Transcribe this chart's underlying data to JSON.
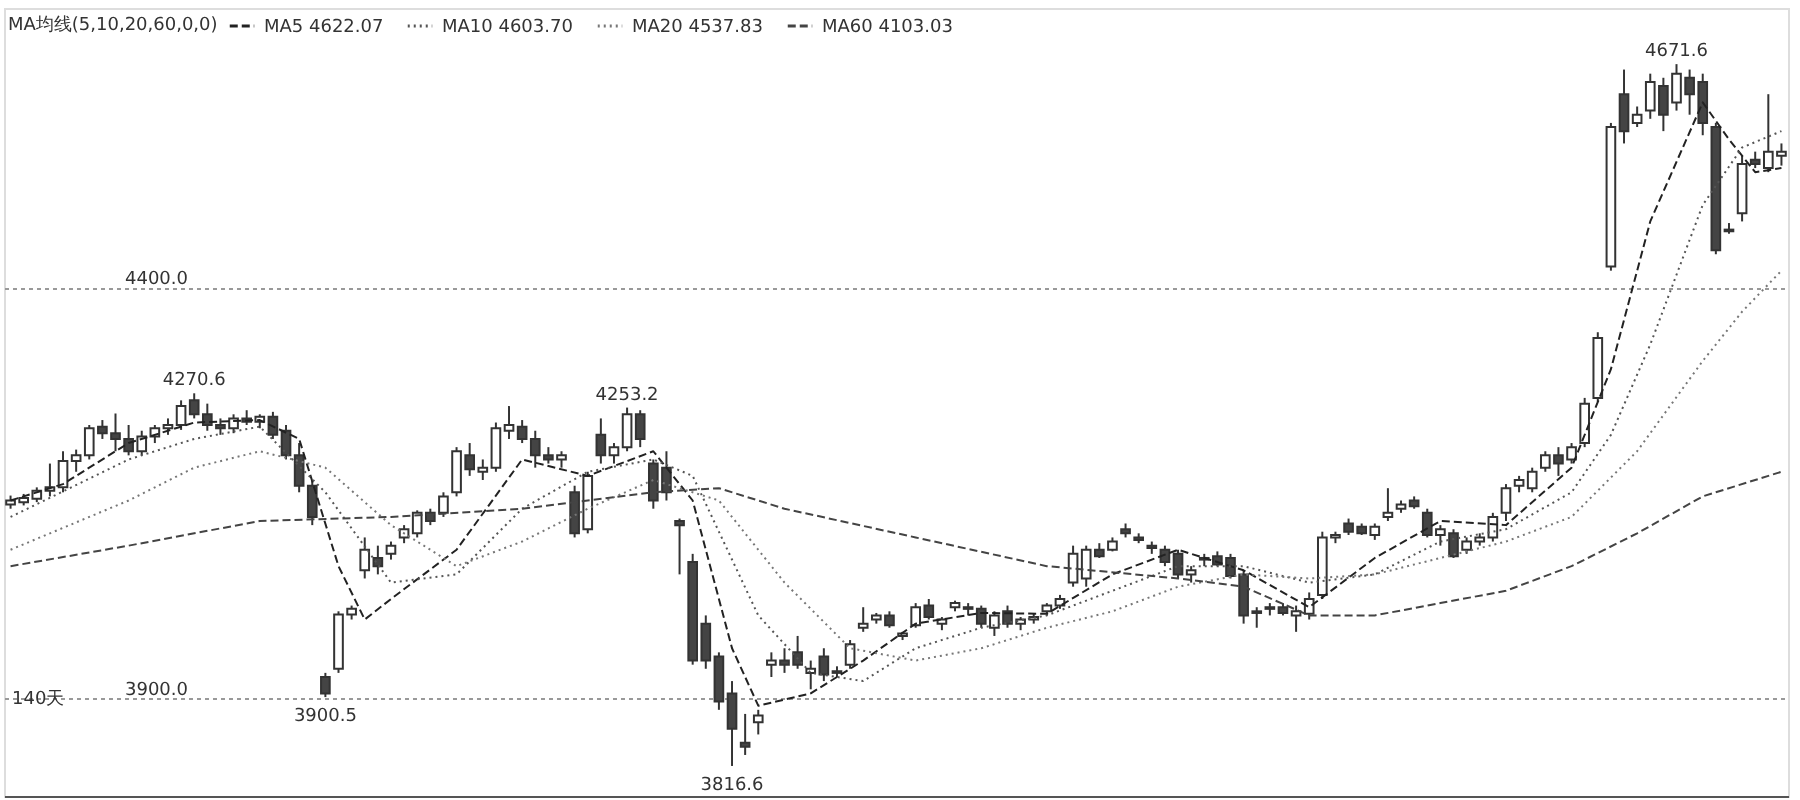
{
  "chart_data": {
    "type": "candlestick",
    "categories": [
      null,
      null,
      null,
      null,
      null,
      null,
      null,
      null,
      null,
      null,
      null,
      null,
      null,
      null,
      null,
      null,
      null,
      null,
      null,
      null,
      null,
      null,
      null,
      null,
      null,
      null,
      null,
      null,
      null,
      null,
      null,
      null,
      null,
      null,
      null,
      null,
      null,
      null,
      null,
      null,
      null,
      null,
      null,
      null,
      null,
      null,
      null,
      null,
      null,
      null,
      null,
      null,
      null,
      null,
      null,
      null,
      null,
      null,
      null,
      null,
      null,
      null,
      null,
      null,
      null,
      null,
      null,
      null,
      null,
      null,
      null,
      null,
      null,
      null,
      null,
      null,
      null,
      null,
      null,
      null,
      null,
      null,
      null,
      null,
      null,
      null,
      null,
      null,
      null,
      null,
      null,
      null,
      null,
      null,
      null,
      null,
      null,
      null,
      null,
      null,
      null,
      null,
      null,
      null,
      null,
      null,
      null,
      null,
      null,
      null,
      null,
      null,
      null,
      null,
      null,
      null,
      null,
      null,
      null,
      null,
      null,
      null,
      null,
      null,
      null,
      null,
      null,
      null,
      null,
      null,
      null,
      null,
      null,
      null,
      null,
      null
    ],
    "ohlc": [
      [
        4135,
        4146,
        4130,
        4140
      ],
      [
        4138,
        4148,
        4134,
        4143
      ],
      [
        4142,
        4156,
        4138,
        4152
      ],
      [
        4152,
        4185,
        4145,
        4156
      ],
      [
        4156,
        4200,
        4150,
        4188
      ],
      [
        4188,
        4202,
        4175,
        4195
      ],
      [
        4195,
        4232,
        4190,
        4228
      ],
      [
        4230,
        4238,
        4215,
        4222
      ],
      [
        4222,
        4246,
        4200,
        4215
      ],
      [
        4215,
        4232,
        4195,
        4200
      ],
      [
        4200,
        4225,
        4195,
        4218
      ],
      [
        4218,
        4232,
        4210,
        4228
      ],
      [
        4228,
        4240,
        4220,
        4232
      ],
      [
        4232,
        4262,
        4226,
        4255
      ],
      [
        4262,
        4270.6,
        4240,
        4245
      ],
      [
        4245,
        4258,
        4225,
        4232
      ],
      [
        4232,
        4240,
        4220,
        4228
      ],
      [
        4228,
        4245,
        4222,
        4240
      ],
      [
        4240,
        4250,
        4232,
        4236
      ],
      [
        4236,
        4245,
        4228,
        4242
      ],
      [
        4242,
        4248,
        4215,
        4220
      ],
      [
        4225,
        4232,
        4190,
        4195
      ],
      [
        4195,
        4210,
        4150,
        4158
      ],
      [
        4158,
        4165,
        4110,
        4120
      ],
      [
        3925,
        3930,
        3900.5,
        3905
      ],
      [
        3935,
        4005,
        3930,
        4001
      ],
      [
        4001,
        4012,
        3995,
        4008
      ],
      [
        4055,
        4095,
        4045,
        4080
      ],
      [
        4070,
        4085,
        4050,
        4060
      ],
      [
        4075,
        4090,
        4068,
        4085
      ],
      [
        4095,
        4110,
        4088,
        4105
      ],
      [
        4100,
        4128,
        4095,
        4125
      ],
      [
        4125,
        4130,
        4110,
        4115
      ],
      [
        4125,
        4150,
        4120,
        4145
      ],
      [
        4150,
        4205,
        4145,
        4200
      ],
      [
        4195,
        4210,
        4170,
        4178
      ],
      [
        4175,
        4190,
        4165,
        4180
      ],
      [
        4180,
        4235,
        4175,
        4228
      ],
      [
        4225,
        4255,
        4215,
        4232
      ],
      [
        4230,
        4238,
        4210,
        4215
      ],
      [
        4215,
        4225,
        4180,
        4195
      ],
      [
        4195,
        4205,
        4185,
        4190
      ],
      [
        4190,
        4200,
        4180,
        4195
      ],
      [
        4150,
        4158,
        4095,
        4100
      ],
      [
        4105,
        4175,
        4100,
        4170
      ],
      [
        4220,
        4240,
        4185,
        4195
      ],
      [
        4195,
        4210,
        4185,
        4205
      ],
      [
        4205,
        4253.2,
        4200,
        4245
      ],
      [
        4245,
        4250,
        4205,
        4215
      ],
      [
        4185,
        4190,
        4130,
        4140
      ],
      [
        4180,
        4200,
        4140,
        4150
      ],
      [
        4115,
        4118,
        4050,
        4110
      ],
      [
        4065,
        4075,
        3940,
        3945
      ],
      [
        3990,
        4000,
        3935,
        3945
      ],
      [
        3950,
        3955,
        3885,
        3895
      ],
      [
        3905,
        3920,
        3816.6,
        3862
      ],
      [
        3845,
        3880,
        3830,
        3840
      ],
      [
        3870,
        3885,
        3855,
        3878
      ],
      [
        3940,
        3955,
        3925,
        3945
      ],
      [
        3945,
        3960,
        3930,
        3940
      ],
      [
        3955,
        3975,
        3935,
        3940
      ],
      [
        3930,
        3945,
        3910,
        3935
      ],
      [
        3950,
        3960,
        3920,
        3928
      ],
      [
        3930,
        3938,
        3925,
        3932
      ],
      [
        3940,
        3970,
        3935,
        3965
      ],
      [
        3985,
        4010,
        3980,
        3990
      ],
      [
        3995,
        4003,
        3990,
        4000
      ],
      [
        4000,
        4005,
        3985,
        3988
      ],
      [
        3975,
        3980,
        3970,
        3978
      ],
      [
        3988,
        4015,
        3985,
        4010
      ],
      [
        4012,
        4020,
        3995,
        3998
      ],
      [
        3990,
        3998,
        3982,
        3995
      ],
      [
        4010,
        4018,
        4005,
        4015
      ],
      [
        4010,
        4015,
        4000,
        4008
      ],
      [
        4008,
        4012,
        3985,
        3990
      ],
      [
        3985,
        4005,
        3975,
        4000
      ],
      [
        4005,
        4012,
        3985,
        3990
      ],
      [
        3990,
        3998,
        3982,
        3995
      ],
      [
        3995,
        4002,
        3990,
        3998
      ],
      [
        4005,
        4015,
        4000,
        4012
      ],
      [
        4012,
        4025,
        4008,
        4020
      ],
      [
        4040,
        4085,
        4035,
        4075
      ],
      [
        4045,
        4085,
        4035,
        4080
      ],
      [
        4080,
        4088,
        4070,
        4072
      ],
      [
        4080,
        4095,
        4078,
        4090
      ],
      [
        4105,
        4112,
        4095,
        4100
      ],
      [
        4095,
        4100,
        4088,
        4092
      ],
      [
        4085,
        4090,
        4075,
        4082
      ],
      [
        4080,
        4085,
        4060,
        4065
      ],
      [
        4075,
        4080,
        4045,
        4050
      ],
      [
        4050,
        4060,
        4040,
        4055
      ],
      [
        4068,
        4075,
        4060,
        4070
      ],
      [
        4072,
        4078,
        4060,
        4062
      ],
      [
        4070,
        4075,
        4045,
        4048
      ],
      [
        4050,
        4055,
        3990,
        4000
      ],
      [
        4005,
        4010,
        3985,
        4003
      ],
      [
        4008,
        4015,
        4000,
        4010
      ],
      [
        4010,
        4015,
        4000,
        4003
      ],
      [
        4000,
        4012,
        3980,
        4005
      ],
      [
        4002,
        4028,
        3995,
        4020
      ],
      [
        4025,
        4102,
        4020,
        4095
      ],
      [
        4095,
        4102,
        4088,
        4098
      ],
      [
        4112,
        4118,
        4098,
        4102
      ],
      [
        4108,
        4112,
        4098,
        4100
      ],
      [
        4098,
        4112,
        4092,
        4108
      ],
      [
        4120,
        4155,
        4115,
        4125
      ],
      [
        4130,
        4140,
        4125,
        4135
      ],
      [
        4140,
        4145,
        4130,
        4133
      ],
      [
        4125,
        4130,
        4095,
        4098
      ],
      [
        4098,
        4110,
        4085,
        4105
      ],
      [
        4100,
        4105,
        4070,
        4072
      ],
      [
        4080,
        4095,
        4075,
        4090
      ],
      [
        4090,
        4100,
        4085,
        4095
      ],
      [
        4095,
        4125,
        4090,
        4120
      ],
      [
        4125,
        4160,
        4115,
        4155
      ],
      [
        4158,
        4170,
        4150,
        4165
      ],
      [
        4155,
        4180,
        4150,
        4175
      ],
      [
        4180,
        4200,
        4175,
        4195
      ],
      [
        4195,
        4205,
        4170,
        4185
      ],
      [
        4190,
        4210,
        4185,
        4205
      ],
      [
        4210,
        4265,
        4205,
        4258
      ],
      [
        4265,
        4345,
        4260,
        4338
      ],
      [
        4425,
        4600,
        4420,
        4595
      ],
      [
        4635,
        4665,
        4575,
        4590
      ],
      [
        4600,
        4620,
        4595,
        4610
      ],
      [
        4615,
        4660,
        4605,
        4650
      ],
      [
        4645,
        4655,
        4590,
        4610
      ],
      [
        4625,
        4671.6,
        4615,
        4660
      ],
      [
        4655,
        4665,
        4610,
        4635
      ],
      [
        4650,
        4660,
        4585,
        4600
      ],
      [
        4595,
        4600,
        4440,
        4445
      ],
      [
        4470,
        4478,
        4465,
        4468
      ],
      [
        4490,
        4560,
        4480,
        4550
      ],
      [
        4555,
        4565,
        4545,
        4550
      ],
      [
        4545,
        4635,
        4540,
        4565
      ],
      [
        4560,
        4575,
        4548,
        4565
      ]
    ],
    "series": [
      {
        "name": "MA5 4622.07",
        "color": "#222222",
        "type": "line",
        "line_style": "dashed",
        "values": [
          4140,
          null,
          null,
          null,
          4160,
          null,
          null,
          null,
          null,
          4210,
          null,
          null,
          null,
          null,
          4235,
          null,
          null,
          null,
          null,
          4238,
          null,
          null,
          4215,
          null,
          null,
          4060,
          null,
          3995,
          null,
          4020,
          null,
          null,
          null,
          null,
          4080,
          null,
          null,
          null,
          null,
          4190,
          null,
          null,
          null,
          null,
          4170,
          null,
          null,
          null,
          null,
          4200,
          null,
          null,
          4140,
          null,
          null,
          3960,
          null,
          3890,
          null,
          null,
          null,
          3905,
          null,
          null,
          null,
          3945,
          null,
          null,
          null,
          3990,
          null,
          null,
          null,
          null,
          4003,
          null,
          null,
          null,
          null,
          4002,
          null,
          null,
          null,
          null,
          4050,
          null,
          null,
          null,
          null,
          4080,
          null,
          null,
          null,
          null,
          4055,
          null,
          null,
          null,
          null,
          4010,
          null,
          null,
          null,
          null,
          4070,
          null,
          null,
          null,
          null,
          4115,
          null,
          null,
          null,
          null,
          4110,
          null,
          null,
          null,
          null,
          4180,
          null,
          null,
          4300,
          null,
          null,
          4480,
          null,
          null,
          null,
          4625,
          null,
          4580,
          null,
          4540,
          null,
          4545
        ]
      },
      {
        "name": "MA10 4603.70",
        "color": "#555555",
        "type": "line",
        "line_style": "dotted",
        "values": [
          4120,
          null,
          null,
          null,
          null,
          null,
          null,
          null,
          null,
          4190,
          null,
          null,
          null,
          null,
          4215,
          null,
          null,
          null,
          null,
          4230,
          null,
          null,
          null,
          null,
          4150,
          null,
          null,
          null,
          null,
          4040,
          null,
          null,
          null,
          null,
          4050,
          null,
          null,
          null,
          null,
          4130,
          null,
          null,
          null,
          null,
          4175,
          null,
          null,
          null,
          null,
          4190,
          null,
          null,
          4170,
          null,
          null,
          null,
          null,
          4000,
          null,
          null,
          null,
          3930,
          null,
          null,
          null,
          3920,
          null,
          null,
          null,
          3960,
          null,
          null,
          null,
          null,
          3985,
          null,
          null,
          null,
          null,
          4000,
          null,
          null,
          null,
          null,
          4030,
          null,
          null,
          null,
          null,
          4060,
          null,
          null,
          null,
          null,
          4060,
          null,
          null,
          null,
          null,
          4040,
          null,
          null,
          null,
          null,
          4050,
          null,
          null,
          null,
          null,
          4090,
          null,
          null,
          null,
          null,
          4105,
          null,
          null,
          null,
          null,
          4150,
          null,
          null,
          4220,
          null,
          null,
          4330,
          null,
          null,
          null,
          4500,
          null,
          null,
          4570,
          null,
          null,
          4590
        ]
      },
      {
        "name": "MA20 4537.83",
        "color": "#777777",
        "type": "line",
        "line_style": "dotted",
        "values": [
          4080,
          null,
          null,
          null,
          null,
          null,
          null,
          null,
          null,
          4140,
          null,
          null,
          null,
          null,
          4180,
          null,
          null,
          null,
          null,
          4200,
          null,
          null,
          null,
          null,
          4180,
          null,
          null,
          null,
          null,
          4110,
          null,
          null,
          null,
          null,
          4060,
          null,
          null,
          null,
          null,
          4090,
          null,
          null,
          null,
          null,
          4130,
          null,
          null,
          null,
          null,
          4165,
          null,
          null,
          null,
          null,
          4140,
          null,
          null,
          null,
          null,
          4040,
          null,
          null,
          null,
          null,
          3960,
          null,
          null,
          null,
          null,
          3945,
          null,
          null,
          null,
          null,
          3960,
          null,
          null,
          null,
          null,
          3985,
          null,
          null,
          null,
          null,
          4005,
          null,
          null,
          null,
          null,
          4035,
          null,
          null,
          null,
          null,
          4050,
          null,
          null,
          null,
          null,
          4045,
          null,
          null,
          null,
          null,
          4050,
          null,
          null,
          null,
          null,
          4070,
          null,
          null,
          null,
          null,
          4090,
          null,
          null,
          null,
          null,
          4120,
          null,
          null,
          null,
          null,
          4200,
          null,
          null,
          null,
          null,
          4310,
          null,
          null,
          4370,
          null,
          null,
          4420
        ]
      },
      {
        "name": "MA60 4103.03",
        "color": "#444444",
        "type": "line",
        "line_style": "dashed",
        "values": [
          4060,
          null,
          null,
          null,
          null,
          null,
          null,
          null,
          null,
          4085,
          null,
          null,
          null,
          null,
          null,
          null,
          null,
          null,
          null,
          4115,
          null,
          null,
          null,
          null,
          null,
          null,
          null,
          null,
          null,
          4120,
          null,
          null,
          null,
          null,
          null,
          null,
          null,
          null,
          null,
          4130,
          null,
          null,
          null,
          null,
          null,
          null,
          null,
          null,
          null,
          4150,
          null,
          null,
          null,
          null,
          4155,
          null,
          null,
          null,
          null,
          4130,
          null,
          null,
          null,
          null,
          null,
          null,
          null,
          null,
          null,
          4095,
          null,
          null,
          null,
          null,
          null,
          null,
          null,
          null,
          null,
          4060,
          null,
          null,
          null,
          null,
          null,
          null,
          null,
          null,
          null,
          4045,
          null,
          null,
          null,
          null,
          4035,
          null,
          null,
          null,
          null,
          4000,
          null,
          null,
          null,
          null,
          4000,
          null,
          null,
          null,
          null,
          4015,
          null,
          null,
          null,
          null,
          4030,
          null,
          null,
          null,
          null,
          4060,
          null,
          null,
          null,
          null,
          4100,
          null,
          null,
          null,
          null,
          4145,
          null,
          null,
          null,
          null,
          null,
          4175
        ]
      }
    ],
    "legend_title": "MA均线(5,10,20,60,0,0)",
    "legend": "top left",
    "ylim": [
      3780,
      4740
    ],
    "yticks": [
      {
        "value": 4400,
        "label": "4400.0"
      },
      {
        "value": 3900,
        "label": "3900.0"
      }
    ],
    "grid": "y",
    "annotations": [
      "140天",
      {
        "text": "4270.6",
        "y": 4270.6
      },
      {
        "text": "3900.5",
        "y": 3900.5
      },
      {
        "text": "4253.2",
        "y": 4253.2
      },
      {
        "text": "3816.6",
        "y": 3816.6
      },
      {
        "text": "4671.6",
        "y": 4671.6
      }
    ]
  }
}
